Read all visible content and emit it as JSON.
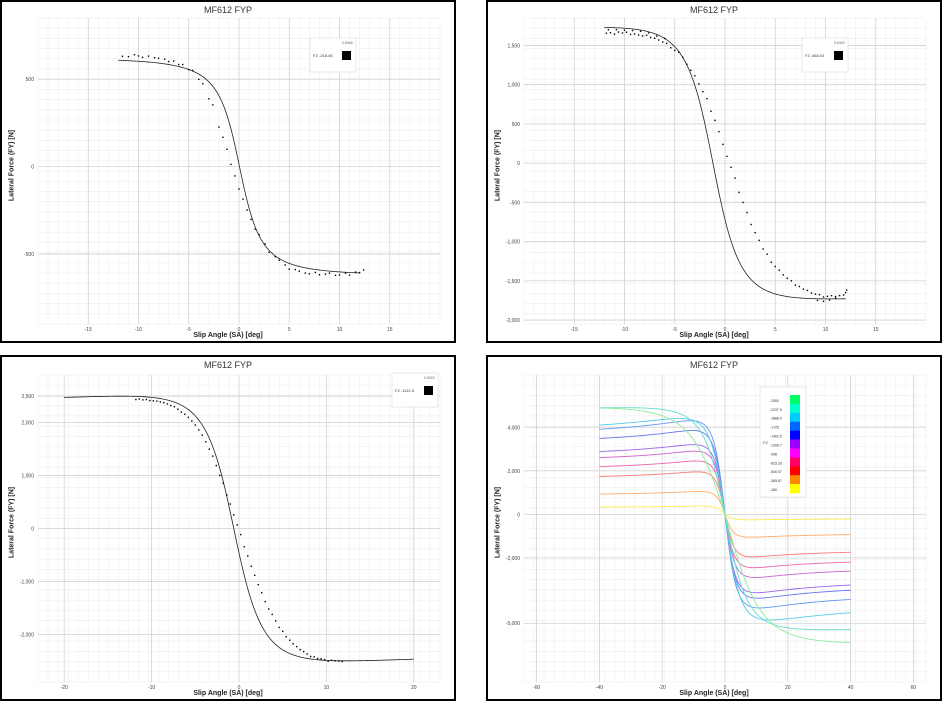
{
  "chart_data": [
    {
      "type": "scatter",
      "title": "MF612 FYP",
      "xlabel": "Slip Angle (SA) [deg]",
      "ylabel": "Lateral Force (FY) [N]",
      "xlim": [
        -20,
        20
      ],
      "ylim": [
        -900,
        850
      ],
      "xticks": [
        {
          "v": -15,
          "label": "-15"
        },
        {
          "v": -10,
          "label": "-10"
        },
        {
          "v": -5,
          "label": "-5"
        },
        {
          "v": 0,
          "label": "0"
        },
        {
          "v": 5,
          "label": "5"
        },
        {
          "v": 10,
          "label": "10"
        },
        {
          "v": 15,
          "label": "15"
        }
      ],
      "yticks": [
        {
          "v": 500,
          "label": "500"
        },
        {
          "v": 0,
          "label": "0"
        },
        {
          "v": -500,
          "label": "-500"
        }
      ],
      "grid": true,
      "legend": {
        "position": "top-right",
        "heading": "FZ",
        "entries": [
          {
            "label": "-218.45",
            "color": "#000000"
          }
        ],
        "extra": "0.8965"
      },
      "curve": {
        "D": 620,
        "B": 0.42,
        "C": 1.05,
        "E": 0.35,
        "shift": 0.05,
        "range": [
          -12,
          12
        ]
      },
      "points": [
        [
          -11.6,
          631
        ],
        [
          -11,
          629
        ],
        [
          -10.4,
          640
        ],
        [
          -10,
          633
        ],
        [
          -9.6,
          625
        ],
        [
          -9,
          632
        ],
        [
          -8.4,
          623
        ],
        [
          -8,
          620
        ],
        [
          -7.4,
          615
        ],
        [
          -7,
          601
        ],
        [
          -6.5,
          604
        ],
        [
          -6,
          584
        ],
        [
          -5.6,
          584
        ],
        [
          -5,
          555
        ],
        [
          -4.6,
          550
        ],
        [
          -4,
          499
        ],
        [
          -3.6,
          474
        ],
        [
          -3,
          388
        ],
        [
          -2.6,
          353
        ],
        [
          -2,
          226
        ],
        [
          -1.6,
          168
        ],
        [
          -1.2,
          99
        ],
        [
          -0.8,
          13
        ],
        [
          -0.4,
          -53
        ],
        [
          0,
          -128
        ],
        [
          0.4,
          -186
        ],
        [
          0.8,
          -248
        ],
        [
          1.2,
          -302
        ],
        [
          1.6,
          -358
        ],
        [
          2,
          -389
        ],
        [
          2.6,
          -442
        ],
        [
          3,
          -490
        ],
        [
          3.6,
          -515
        ],
        [
          4,
          -535
        ],
        [
          4.6,
          -563
        ],
        [
          5,
          -586
        ],
        [
          5.6,
          -589
        ],
        [
          6,
          -598
        ],
        [
          6.6,
          -609
        ],
        [
          7,
          -613
        ],
        [
          7.6,
          -605
        ],
        [
          8,
          -618
        ],
        [
          8.6,
          -615
        ],
        [
          9,
          -609
        ],
        [
          9.6,
          -622
        ],
        [
          10,
          -619
        ],
        [
          10.6,
          -609
        ],
        [
          11,
          -621
        ],
        [
          11.6,
          -603
        ],
        [
          12,
          -606
        ],
        [
          12.4,
          -591
        ]
      ]
    },
    {
      "type": "scatter",
      "title": "MF612 FYP",
      "xlabel": "Slip Angle (SA) [deg]",
      "ylabel": "Lateral Force (FY) [N]",
      "xlim": [
        -20,
        20
      ],
      "ylim": [
        -2050,
        1850
      ],
      "xticks": [
        {
          "v": -15,
          "label": "-15"
        },
        {
          "v": -10,
          "label": "-10"
        },
        {
          "v": -5,
          "label": "-5"
        },
        {
          "v": 0,
          "label": "0"
        },
        {
          "v": 5,
          "label": "5"
        },
        {
          "v": 10,
          "label": "10"
        },
        {
          "v": 15,
          "label": "15"
        }
      ],
      "yticks": [
        {
          "v": 1500,
          "label": "1,500"
        },
        {
          "v": 1000,
          "label": "1,000"
        },
        {
          "v": 500,
          "label": "500"
        },
        {
          "v": 0,
          "label": "0"
        },
        {
          "v": -500,
          "label": "-500"
        },
        {
          "v": -1000,
          "label": "-1,000"
        },
        {
          "v": -1500,
          "label": "-1,500"
        },
        {
          "v": -2000,
          "label": "-2,000"
        }
      ],
      "grid": true,
      "legend": {
        "position": "top-right",
        "heading": "FZ",
        "entries": [
          {
            "label": "-664.01",
            "color": "#000000"
          }
        ],
        "extra": "0.6302"
      },
      "curve": {
        "D": 1730,
        "B": 0.3,
        "C": 1.25,
        "E": 0.2,
        "shift": -1.2,
        "range": [
          -12,
          12
        ]
      },
      "points": [
        [
          -11.8,
          1655
        ],
        [
          -11.4,
          1662
        ],
        [
          -11,
          1644
        ],
        [
          -10.6,
          1671
        ],
        [
          -10.2,
          1659
        ],
        [
          -9.8,
          1669
        ],
        [
          -9.4,
          1641
        ],
        [
          -9,
          1646
        ],
        [
          -8.6,
          1634
        ],
        [
          -8.2,
          1622
        ],
        [
          -7.8,
          1630
        ],
        [
          -7.4,
          1601
        ],
        [
          -7,
          1591
        ],
        [
          -6.6,
          1569
        ],
        [
          -6.2,
          1544
        ],
        [
          -5.8,
          1526
        ],
        [
          -5.4,
          1471
        ],
        [
          -5,
          1437
        ],
        [
          -4.6,
          1414
        ],
        [
          -4.2,
          1349
        ],
        [
          -3.8,
          1260
        ],
        [
          -3.4,
          1184
        ],
        [
          -3,
          1114
        ],
        [
          -2.6,
          1011
        ],
        [
          -2.2,
          911
        ],
        [
          -1.8,
          822
        ],
        [
          -1.4,
          661
        ],
        [
          -1,
          545
        ],
        [
          -0.6,
          401
        ],
        [
          -0.2,
          239
        ],
        [
          0.2,
          87
        ],
        [
          0.6,
          -53
        ],
        [
          1,
          -190
        ],
        [
          1.4,
          -373
        ],
        [
          1.8,
          -501
        ],
        [
          2.2,
          -629
        ],
        [
          2.6,
          -782
        ],
        [
          3,
          -886
        ],
        [
          3.4,
          -984
        ],
        [
          3.8,
          -1094
        ],
        [
          4.2,
          -1161
        ],
        [
          4.6,
          -1262
        ],
        [
          5,
          -1317
        ],
        [
          5.4,
          -1364
        ],
        [
          5.8,
          -1424
        ],
        [
          6.2,
          -1468
        ],
        [
          6.6,
          -1500
        ],
        [
          7,
          -1555
        ],
        [
          7.4,
          -1572
        ],
        [
          7.8,
          -1605
        ],
        [
          8.2,
          -1622
        ],
        [
          8.6,
          -1656
        ],
        [
          9,
          -1669
        ],
        [
          9.4,
          -1676
        ],
        [
          9.8,
          -1706
        ],
        [
          10.2,
          -1697
        ],
        [
          10.6,
          -1689
        ],
        [
          11,
          -1700
        ],
        [
          11.4,
          -1688
        ],
        [
          11.8,
          -1680
        ],
        [
          12.1,
          -1617
        ],
        [
          12,
          -1650
        ],
        [
          -11.6,
          1700
        ],
        [
          -10.8,
          1700
        ],
        [
          -10,
          1695
        ],
        [
          -9.2,
          1690
        ],
        [
          -8.4,
          1680
        ],
        [
          -7.6,
          1660
        ],
        [
          -6.8,
          1620
        ],
        [
          -6,
          1590
        ],
        [
          9.2,
          -1749
        ],
        [
          9.8,
          -1760
        ],
        [
          10.4,
          -1745
        ],
        [
          11,
          -1720
        ]
      ]
    },
    {
      "type": "scatter",
      "title": "MF612 FYP",
      "xlabel": "Slip Angle (SA) [deg]",
      "ylabel": "Lateral Force (FY) [N]",
      "xlim": [
        -23,
        23
      ],
      "ylim": [
        -2900,
        2900
      ],
      "xticks": [
        {
          "v": -20,
          "label": "-20"
        },
        {
          "v": -10,
          "label": "-10"
        },
        {
          "v": 0,
          "label": "0"
        },
        {
          "v": 10,
          "label": "10"
        },
        {
          "v": 20,
          "label": "20"
        }
      ],
      "yticks": [
        {
          "v": 2500,
          "label": "2,500"
        },
        {
          "v": 2000,
          "label": "2,000"
        },
        {
          "v": 1000,
          "label": "1,000"
        },
        {
          "v": 0,
          "label": "0"
        },
        {
          "v": -1000,
          "label": "-1,000"
        },
        {
          "v": -2000,
          "label": "-2,000"
        }
      ],
      "grid": true,
      "legend": {
        "position": "top-right",
        "heading": "FZ",
        "entries": [
          {
            "label": "-1112.5",
            "color": "#000000"
          }
        ],
        "extra": "0.9522"
      },
      "curve": {
        "D": 2500,
        "B": 0.24,
        "C": 1.3,
        "E": 0.25,
        "shift": -0.6,
        "range": [
          -20,
          20
        ]
      },
      "points": [
        [
          -11.8,
          2436
        ],
        [
          -11.4,
          2447
        ],
        [
          -11,
          2430
        ],
        [
          -10.6,
          2437
        ],
        [
          -10.2,
          2418
        ],
        [
          -9.8,
          2413
        ],
        [
          -9.4,
          2405
        ],
        [
          -9,
          2392
        ],
        [
          -8.6,
          2378
        ],
        [
          -8.2,
          2354
        ],
        [
          -7.8,
          2322
        ],
        [
          -7.4,
          2301
        ],
        [
          -7,
          2253
        ],
        [
          -6.6,
          2200
        ],
        [
          -6.2,
          2158
        ],
        [
          -5.8,
          2098
        ],
        [
          -5.4,
          2032
        ],
        [
          -5,
          1954
        ],
        [
          -4.6,
          1861
        ],
        [
          -4.2,
          1765
        ],
        [
          -3.8,
          1638
        ],
        [
          -3.4,
          1498
        ],
        [
          -3,
          1367
        ],
        [
          -2.6,
          1188
        ],
        [
          -2.2,
          1002
        ],
        [
          -1.8,
          855
        ],
        [
          -1.4,
          636
        ],
        [
          -1,
          462
        ],
        [
          -0.6,
          258
        ],
        [
          -0.2,
          69
        ],
        [
          0.2,
          -115
        ],
        [
          0.6,
          -346
        ],
        [
          1,
          -519
        ],
        [
          1.4,
          -713
        ],
        [
          1.8,
          -885
        ],
        [
          2.2,
          -1061
        ],
        [
          2.6,
          -1212
        ],
        [
          3,
          -1381
        ],
        [
          3.4,
          -1521
        ],
        [
          3.8,
          -1623
        ],
        [
          4.2,
          -1745
        ],
        [
          4.6,
          -1870
        ],
        [
          5,
          -1943
        ],
        [
          5.4,
          -2044
        ],
        [
          5.8,
          -2111
        ],
        [
          6.2,
          -2177
        ],
        [
          6.6,
          -2232
        ],
        [
          7,
          -2289
        ],
        [
          7.4,
          -2326
        ],
        [
          7.8,
          -2371
        ],
        [
          8.2,
          -2418
        ],
        [
          8.6,
          -2424
        ],
        [
          9,
          -2456
        ],
        [
          9.4,
          -2462
        ],
        [
          9.8,
          -2476
        ],
        [
          10.2,
          -2509
        ],
        [
          10.6,
          -2491
        ],
        [
          11,
          -2501
        ],
        [
          11.4,
          -2503
        ],
        [
          11.8,
          -2514
        ]
      ]
    },
    {
      "type": "line",
      "title": "MF612 FYP",
      "xlabel": "Slip Angle (SA) [deg]",
      "ylabel": "Lateral Force (FY) [N]",
      "xlim": [
        -64,
        64
      ],
      "ylim": [
        -7700,
        6400
      ],
      "xticks": [
        {
          "v": -60,
          "label": "-60"
        },
        {
          "v": -40,
          "label": "-40"
        },
        {
          "v": -20,
          "label": "-20"
        },
        {
          "v": 0,
          "label": "0"
        },
        {
          "v": 20,
          "label": "20"
        },
        {
          "v": 40,
          "label": "40"
        },
        {
          "v": 60,
          "label": "60"
        }
      ],
      "yticks": [
        {
          "v": 4000,
          "label": "4,000"
        },
        {
          "v": 2000,
          "label": "2,000"
        },
        {
          "v": 0,
          "label": "0"
        },
        {
          "v": -2000,
          "label": "-2,000"
        },
        {
          "v": -5000,
          "label": "-5,000"
        }
      ],
      "grid": true,
      "legend": {
        "position": "top-right",
        "heading": "FZ",
        "extra": "",
        "entries": [
          {
            "label": "-2550",
            "color": "#00ff66"
          },
          {
            "label": "-2237.5",
            "color": "#00ffcc"
          },
          {
            "label": "-1888.9",
            "color": "#00ccff"
          },
          {
            "label": "-1725",
            "color": "#0066ff"
          },
          {
            "label": "-1462.5",
            "color": "#0000ff"
          },
          {
            "label": "-1268.7",
            "color": "#9900ff"
          },
          {
            "label": "-998",
            "color": "#ff00ff"
          },
          {
            "label": "-833.33",
            "color": "#ff0066"
          },
          {
            "label": "-506.07",
            "color": "#ff0000"
          },
          {
            "label": "-365.67",
            "color": "#ff8800"
          },
          {
            "label": "-180",
            "color": "#ffff00"
          }
        ]
      },
      "range": [
        -40,
        40
      ],
      "series": [
        {
          "color": "#ffee55",
          "D": 380,
          "B": 0.3,
          "C": 1.4,
          "E": 0.2,
          "Dneg": 250
        },
        {
          "color": "#ffaa66",
          "D": 1050,
          "B": 0.28,
          "C": 1.4,
          "E": 0.2,
          "Dneg": 1050
        },
        {
          "color": "#ff7777",
          "D": 1950,
          "B": 0.26,
          "C": 1.4,
          "E": 0.2,
          "Dneg": 1950
        },
        {
          "color": "#ee66aa",
          "D": 2450,
          "B": 0.25,
          "C": 1.4,
          "E": 0.2,
          "Dneg": 2450
        },
        {
          "color": "#cc66cc",
          "D": 2900,
          "B": 0.24,
          "C": 1.4,
          "E": 0.2,
          "Dneg": 2900
        },
        {
          "color": "#9966ee",
          "D": 3200,
          "B": 0.23,
          "C": 1.4,
          "E": 0.2,
          "Dneg": 3600
        },
        {
          "color": "#6677ee",
          "D": 3850,
          "B": 0.22,
          "C": 1.4,
          "E": 0.2,
          "Dneg": 3850
        },
        {
          "color": "#6699ee",
          "D": 4300,
          "B": 0.21,
          "C": 1.4,
          "E": 0.2,
          "Dneg": 4300
        },
        {
          "color": "#55ccee",
          "D": 4400,
          "B": 0.16,
          "C": 1.4,
          "E": 0.2,
          "Dneg": 4850
        },
        {
          "color": "#66ddcc",
          "D": 4900,
          "B": 0.12,
          "C": 1.2,
          "E": 0.1,
          "Dneg": 5300
        },
        {
          "color": "#88ee99",
          "D": 4900,
          "B": 0.075,
          "C": 1.2,
          "E": 0.0,
          "Dneg": 5900
        }
      ]
    }
  ]
}
